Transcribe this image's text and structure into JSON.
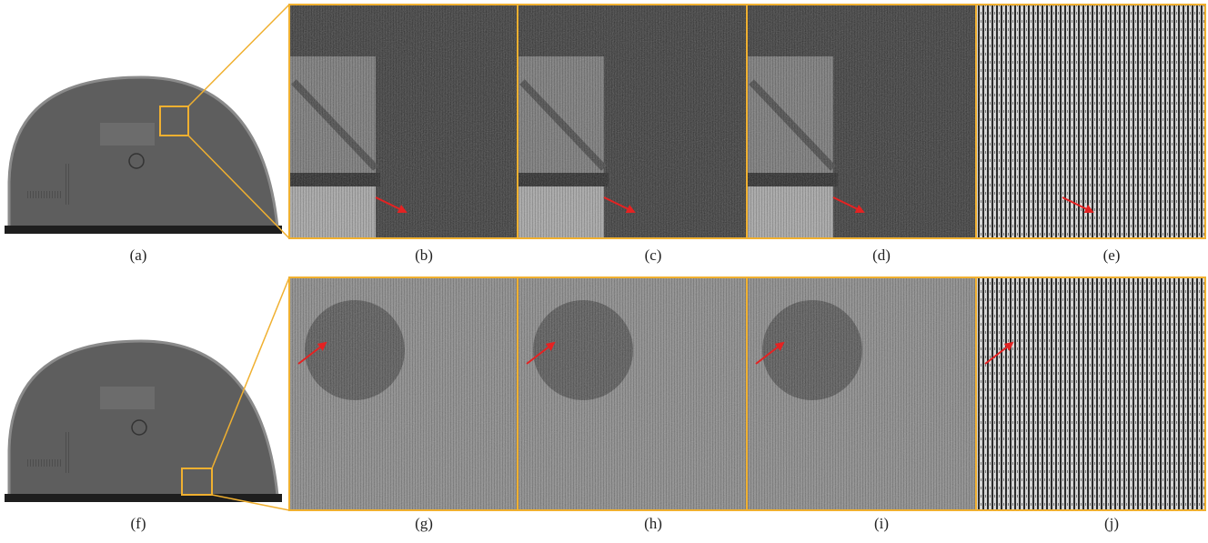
{
  "figure": {
    "labels": [
      "(a)",
      "(b)",
      "(c)",
      "(d)",
      "(e)",
      "(f)",
      "(g)",
      "(h)",
      "(i)",
      "(j)"
    ]
  }
}
